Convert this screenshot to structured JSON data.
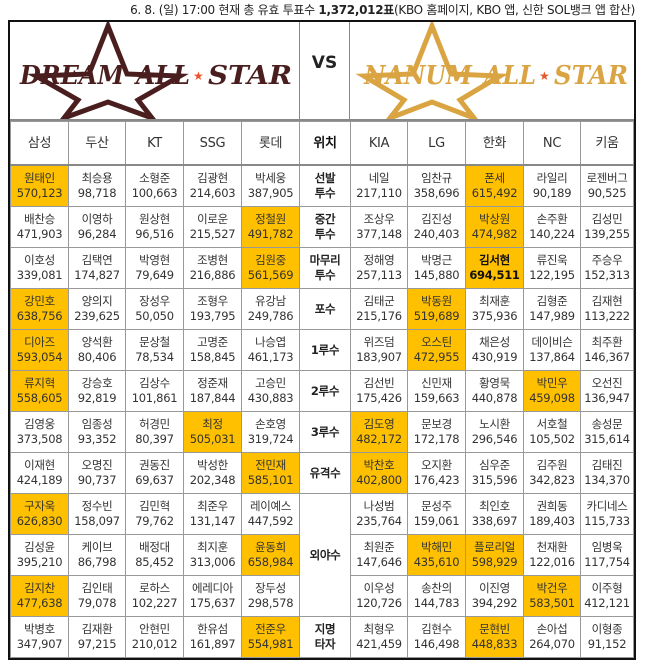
{
  "caption": {
    "prefix": "6. 8. (일) 17:00 현재 총 유효 투표수 ",
    "total": "1,372,012표",
    "suffix": "(KBO 홈페이지, KBO 앱, 신한 SOL뱅크 앱 합산)"
  },
  "logos": {
    "left": "DREAM ALL STAR",
    "vs": "VS",
    "right": "NANUM ALL STAR",
    "left_color": "#4a1e1e",
    "right_color": "#d9a441",
    "star_accent": "#e8552b"
  },
  "highlight_color": "#ffc000",
  "teams_left": [
    "삼성",
    "두산",
    "KT",
    "SSG",
    "롯데"
  ],
  "position_header": "위치",
  "teams_right": [
    "KIA",
    "LG",
    "한화",
    "NC",
    "키움"
  ],
  "groups": [
    {
      "position": [
        "선발",
        "투수"
      ],
      "lines": [
        {
          "left": [
            [
              "원태인",
              "570,123",
              1
            ],
            [
              "최승용",
              "98,718",
              0
            ],
            [
              "소형준",
              "100,663",
              0
            ],
            [
              "김광현",
              "214,603",
              0
            ],
            [
              "박세웅",
              "387,905",
              0
            ]
          ],
          "right": [
            [
              "네일",
              "217,110",
              0
            ],
            [
              "임찬규",
              "358,696",
              0
            ],
            [
              "폰세",
              "615,492",
              1
            ],
            [
              "라일리",
              "90,189",
              0
            ],
            [
              "로젠버그",
              "90,525",
              0
            ]
          ]
        }
      ]
    },
    {
      "position": [
        "중간",
        "투수"
      ],
      "lines": [
        {
          "left": [
            [
              "배찬승",
              "471,903",
              0
            ],
            [
              "이영하",
              "96,284",
              0
            ],
            [
              "원상현",
              "96,516",
              0
            ],
            [
              "이로운",
              "215,527",
              0
            ],
            [
              "정철원",
              "491,782",
              1
            ]
          ],
          "right": [
            [
              "조상우",
              "377,148",
              0
            ],
            [
              "김진성",
              "240,403",
              0
            ],
            [
              "박상원",
              "474,982",
              1
            ],
            [
              "손주환",
              "140,224",
              0
            ],
            [
              "김성민",
              "139,255",
              0
            ]
          ]
        }
      ]
    },
    {
      "position": [
        "마무리",
        "투수"
      ],
      "lines": [
        {
          "left": [
            [
              "이호성",
              "339,081",
              0
            ],
            [
              "김택연",
              "174,827",
              0
            ],
            [
              "박영현",
              "79,649",
              0
            ],
            [
              "조병현",
              "216,886",
              0
            ],
            [
              "김원중",
              "561,569",
              1
            ]
          ],
          "right": [
            [
              "정해영",
              "257,113",
              0
            ],
            [
              "박명근",
              "145,880",
              0
            ],
            [
              "김서현",
              "694,511",
              2
            ],
            [
              "류진욱",
              "122,195",
              0
            ],
            [
              "주승우",
              "152,313",
              0
            ]
          ]
        }
      ]
    },
    {
      "position": [
        "포수"
      ],
      "lines": [
        {
          "left": [
            [
              "강민호",
              "638,756",
              1
            ],
            [
              "양의지",
              "239,625",
              0
            ],
            [
              "장성우",
              "50,050",
              0
            ],
            [
              "조형우",
              "193,795",
              0
            ],
            [
              "유강남",
              "249,786",
              0
            ]
          ],
          "right": [
            [
              "김태군",
              "215,176",
              0
            ],
            [
              "박동원",
              "519,689",
              1
            ],
            [
              "최재훈",
              "375,936",
              0
            ],
            [
              "김형준",
              "147,989",
              0
            ],
            [
              "김재현",
              "113,222",
              0
            ]
          ]
        }
      ]
    },
    {
      "position": [
        "1루수"
      ],
      "lines": [
        {
          "left": [
            [
              "디아즈",
              "593,054",
              1
            ],
            [
              "양석환",
              "80,406",
              0
            ],
            [
              "문상철",
              "78,534",
              0
            ],
            [
              "고명준",
              "158,845",
              0
            ],
            [
              "나승엽",
              "461,173",
              0
            ]
          ],
          "right": [
            [
              "위즈덤",
              "183,907",
              0
            ],
            [
              "오스틴",
              "472,955",
              1
            ],
            [
              "채은성",
              "430,919",
              0
            ],
            [
              "데이비슨",
              "137,864",
              0
            ],
            [
              "최주환",
              "146,367",
              0
            ]
          ]
        }
      ]
    },
    {
      "position": [
        "2루수"
      ],
      "lines": [
        {
          "left": [
            [
              "류지혁",
              "558,605",
              1
            ],
            [
              "강승호",
              "92,819",
              0
            ],
            [
              "김상수",
              "101,861",
              0
            ],
            [
              "정준재",
              "187,844",
              0
            ],
            [
              "고승민",
              "430,883",
              0
            ]
          ],
          "right": [
            [
              "김선빈",
              "175,426",
              0
            ],
            [
              "신민재",
              "159,663",
              0
            ],
            [
              "황영묵",
              "440,878",
              0
            ],
            [
              "박민우",
              "459,098",
              1
            ],
            [
              "오선진",
              "136,947",
              0
            ]
          ]
        }
      ]
    },
    {
      "position": [
        "3루수"
      ],
      "lines": [
        {
          "left": [
            [
              "김영웅",
              "373,508",
              0
            ],
            [
              "임종성",
              "93,352",
              0
            ],
            [
              "허경민",
              "80,397",
              0
            ],
            [
              "최정",
              "505,031",
              1
            ],
            [
              "손호영",
              "319,724",
              0
            ]
          ],
          "right": [
            [
              "김도영",
              "482,172",
              1
            ],
            [
              "문보경",
              "172,178",
              0
            ],
            [
              "노시환",
              "296,546",
              0
            ],
            [
              "서호철",
              "105,502",
              0
            ],
            [
              "송성문",
              "315,614",
              0
            ]
          ]
        }
      ]
    },
    {
      "position": [
        "유격수"
      ],
      "lines": [
        {
          "left": [
            [
              "이재현",
              "424,189",
              0
            ],
            [
              "오명진",
              "90,737",
              0
            ],
            [
              "권동진",
              "69,637",
              0
            ],
            [
              "박성한",
              "202,348",
              0
            ],
            [
              "전민재",
              "585,101",
              1
            ]
          ],
          "right": [
            [
              "박찬호",
              "402,800",
              1
            ],
            [
              "오지환",
              "176,423",
              0
            ],
            [
              "심우준",
              "315,596",
              0
            ],
            [
              "김주원",
              "342,823",
              0
            ],
            [
              "김태진",
              "134,370",
              0
            ]
          ]
        }
      ]
    },
    {
      "position": [
        "외야수"
      ],
      "lines": [
        {
          "left": [
            [
              "구자욱",
              "626,830",
              1
            ],
            [
              "정수빈",
              "158,097",
              0
            ],
            [
              "김민혁",
              "79,762",
              0
            ],
            [
              "최준우",
              "131,147",
              0
            ],
            [
              "레이예스",
              "447,592",
              0
            ]
          ],
          "right": [
            [
              "나성범",
              "235,764",
              0
            ],
            [
              "문성주",
              "159,061",
              0
            ],
            [
              "최인호",
              "338,697",
              0
            ],
            [
              "권희동",
              "189,403",
              0
            ],
            [
              "카디네스",
              "115,733",
              0
            ]
          ]
        },
        {
          "left": [
            [
              "김성윤",
              "395,210",
              0
            ],
            [
              "케이브",
              "86,798",
              0
            ],
            [
              "배정대",
              "85,452",
              0
            ],
            [
              "최지훈",
              "313,006",
              0
            ],
            [
              "윤동희",
              "658,984",
              1
            ]
          ],
          "right": [
            [
              "최원준",
              "147,646",
              0
            ],
            [
              "박해민",
              "435,610",
              1
            ],
            [
              "플로리얼",
              "598,929",
              1
            ],
            [
              "천재환",
              "122,016",
              0
            ],
            [
              "임병욱",
              "117,754",
              0
            ]
          ]
        },
        {
          "left": [
            [
              "김지찬",
              "477,638",
              1
            ],
            [
              "김인태",
              "79,078",
              0
            ],
            [
              "로하스",
              "102,227",
              0
            ],
            [
              "에레디아",
              "175,637",
              0
            ],
            [
              "장두성",
              "298,578",
              0
            ]
          ],
          "right": [
            [
              "이우성",
              "120,726",
              0
            ],
            [
              "송찬의",
              "144,783",
              0
            ],
            [
              "이진영",
              "394,292",
              0
            ],
            [
              "박건우",
              "583,501",
              1
            ],
            [
              "이주형",
              "412,121",
              0
            ]
          ]
        }
      ]
    },
    {
      "position": [
        "지명",
        "타자"
      ],
      "lines": [
        {
          "left": [
            [
              "박병호",
              "347,907",
              0
            ],
            [
              "김재환",
              "97,215",
              0
            ],
            [
              "안현민",
              "210,012",
              0
            ],
            [
              "한유섬",
              "161,897",
              0
            ],
            [
              "전준우",
              "554,981",
              1
            ]
          ],
          "right": [
            [
              "최형우",
              "421,459",
              0
            ],
            [
              "김현수",
              "146,498",
              0
            ],
            [
              "문현빈",
              "448,833",
              1
            ],
            [
              "손아섭",
              "264,070",
              0
            ],
            [
              "이형종",
              "91,152",
              0
            ]
          ]
        }
      ]
    }
  ]
}
